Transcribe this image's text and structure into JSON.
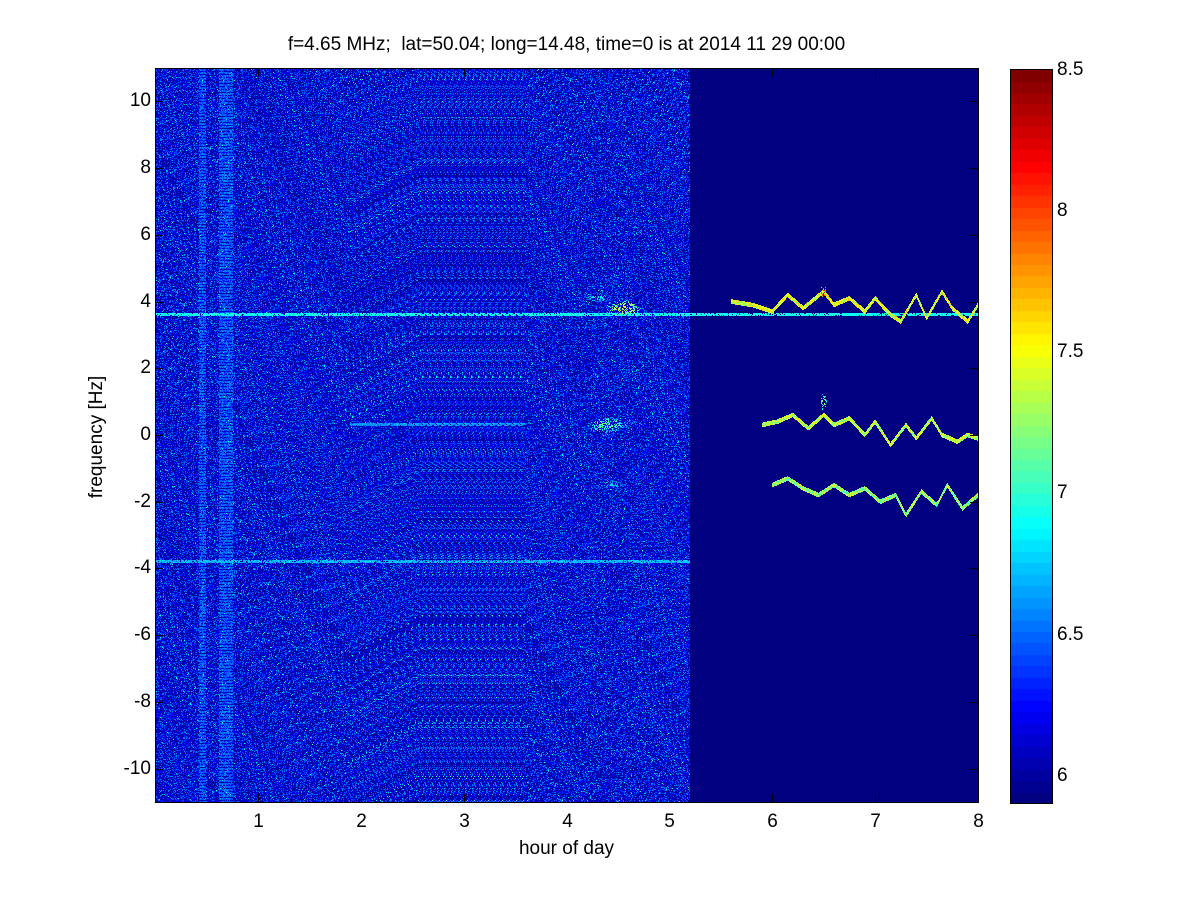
{
  "chart_data": {
    "type": "heatmap",
    "title": "f=4.65 MHz;  lat=50.04; long=14.48, time=0 is at 2014 11 29 00:00",
    "xlabel": "hour of day",
    "ylabel": "frequency [Hz]",
    "xlim": [
      0,
      8
    ],
    "ylim": [
      -11,
      11
    ],
    "x_ticks": [
      1,
      2,
      3,
      4,
      5,
      6,
      7,
      8
    ],
    "y_ticks": [
      -10,
      -8,
      -6,
      -4,
      -2,
      0,
      2,
      4,
      6,
      8,
      10
    ],
    "colorbar": {
      "colormap": "jet",
      "range": [
        5.9,
        8.5
      ],
      "ticks": [
        6,
        6.5,
        7,
        7.5,
        8,
        8.5
      ]
    },
    "background_level": 5.9,
    "noise_end_hour": 5.2,
    "features": {
      "horizontal_lines": [
        {
          "y": 3.6,
          "x_range": [
            0,
            8
          ],
          "level": 7.0
        },
        {
          "y": -3.8,
          "x_range": [
            0,
            5.2
          ],
          "level": 6.8
        },
        {
          "y": 0.3,
          "x_range": [
            1.9,
            3.6
          ],
          "level": 6.7
        }
      ],
      "vertical_bands": [
        {
          "x_range": [
            0.43,
            0.5
          ],
          "level": 6.6
        },
        {
          "x_range": [
            0.62,
            0.76
          ],
          "level": 6.6
        }
      ],
      "traces": [
        {
          "x": [
            5.6,
            5.8,
            6.0,
            6.15,
            6.3,
            6.5,
            6.6,
            6.75,
            6.9,
            7.0,
            7.15,
            7.25,
            7.4,
            7.5,
            7.65,
            7.75,
            7.9,
            8.0
          ],
          "y": [
            4.0,
            3.9,
            3.7,
            4.2,
            3.8,
            4.3,
            3.9,
            4.1,
            3.7,
            4.1,
            3.6,
            3.4,
            4.2,
            3.5,
            4.3,
            3.8,
            3.4,
            3.9
          ],
          "level": 7.7
        },
        {
          "x": [
            5.9,
            6.05,
            6.2,
            6.35,
            6.5,
            6.6,
            6.75,
            6.9,
            7.0,
            7.15,
            7.3,
            7.4,
            7.55,
            7.65,
            7.8,
            7.9,
            8.0
          ],
          "y": [
            0.3,
            0.4,
            0.6,
            0.2,
            0.6,
            0.3,
            0.5,
            0.0,
            0.4,
            -0.3,
            0.3,
            -0.1,
            0.5,
            0.0,
            -0.2,
            0.0,
            -0.1
          ],
          "level": 7.6
        },
        {
          "x": [
            6.0,
            6.15,
            6.3,
            6.45,
            6.6,
            6.75,
            6.9,
            7.05,
            7.2,
            7.3,
            7.45,
            7.6,
            7.7,
            7.85,
            8.0
          ],
          "y": [
            -1.5,
            -1.3,
            -1.6,
            -1.8,
            -1.5,
            -1.8,
            -1.6,
            -2.0,
            -1.8,
            -2.4,
            -1.7,
            -2.1,
            -1.5,
            -2.2,
            -1.8
          ],
          "level": 7.5
        }
      ],
      "blobs": [
        {
          "x": 4.55,
          "y": 3.8,
          "sx": 0.18,
          "sy": 0.25,
          "level": 7.6
        },
        {
          "x": 4.3,
          "y": 4.1,
          "sx": 0.15,
          "sy": 0.15,
          "level": 7.0
        },
        {
          "x": 4.4,
          "y": 0.3,
          "sx": 0.2,
          "sy": 0.25,
          "level": 7.3
        },
        {
          "x": 4.45,
          "y": -1.5,
          "sx": 0.15,
          "sy": 0.15,
          "level": 6.9
        },
        {
          "x": 6.5,
          "y": 4.3,
          "sx": 0.03,
          "sy": 0.2,
          "level": 8.3
        },
        {
          "x": 6.5,
          "y": 1.0,
          "sx": 0.03,
          "sy": 0.3,
          "level": 7.4
        }
      ]
    }
  }
}
